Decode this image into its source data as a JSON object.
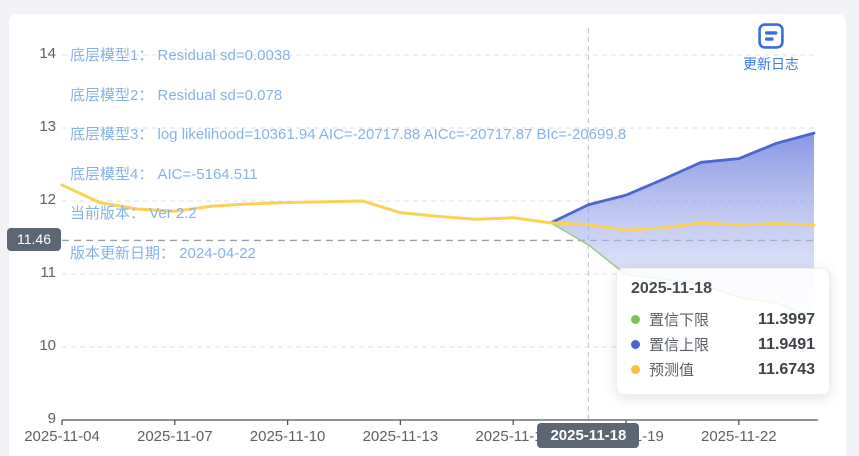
{
  "update_log": {
    "label": "更新日志"
  },
  "annotations": [
    "底层模型1： Residual sd=0.0038",
    "底层模型2： Residual sd=0.078",
    "底层模型3： log likelihood=10361.94 AIC=-20717.88 AICc=-20717.87 BIc=-20699.8",
    "底层模型4： AIC=-5164.511",
    "当前版本： Ver 2.2",
    "版本更新日期： 2024-04-22"
  ],
  "axis_pointer": {
    "date_label": "2025-11-18",
    "value_label": "11.46",
    "date": "2025-11-18",
    "value": 11.46
  },
  "tooltip": {
    "title": "2025-11-18",
    "rows": [
      {
        "label": "置信下限",
        "value": "11.3997",
        "color": "#7cc455"
      },
      {
        "label": "置信上限",
        "value": "11.9491",
        "color": "#4a63cc"
      },
      {
        "label": "预测值",
        "value": "11.6743",
        "color": "#f9c143"
      }
    ]
  },
  "colors": {
    "accent_blue": "#3a6de4",
    "annotation_blue": "#87b2e8",
    "grid": "#d9e2ef",
    "mark_line": "#99a0a8",
    "pointer_line": "#c6cad2",
    "axis": "#50555c",
    "badge_bg": "#5d6774",
    "band_top": "#7a8ce2",
    "band_bottom": "#d6dcf8"
  },
  "chart_data": {
    "type": "line",
    "title": "",
    "xlabel": "",
    "ylabel": "",
    "ylim": [
      9,
      14
    ],
    "y_ticks": [
      9,
      10,
      11,
      12,
      13,
      14
    ],
    "grid": true,
    "legend_position": "tooltip-only",
    "x": [
      "2025-11-04",
      "2025-11-05",
      "2025-11-06",
      "2025-11-07",
      "2025-11-08",
      "2025-11-09",
      "2025-11-10",
      "2025-11-11",
      "2025-11-12",
      "2025-11-13",
      "2025-11-14",
      "2025-11-15",
      "2025-11-16",
      "2025-11-17",
      "2025-11-18",
      "2025-11-19",
      "2025-11-20",
      "2025-11-21",
      "2025-11-22",
      "2025-11-23",
      "2025-11-24"
    ],
    "x_tick_indices": [
      0,
      3,
      6,
      9,
      12,
      15,
      18
    ],
    "x_tick_labels": [
      "2025-11-04",
      "2025-11-07",
      "2025-11-10",
      "2025-11-13",
      "2025-11-16",
      "2025-11-19",
      "2025-11-22"
    ],
    "pointer_index": 14,
    "markline_value": 11.46,
    "band": {
      "upper": "置信上限",
      "lower": "置信下限"
    },
    "series": [
      {
        "name": "预测值",
        "role": "forecast",
        "color": "#fbd158",
        "line_width": 3,
        "x_start_index": 0,
        "values": [
          12.22,
          11.98,
          11.89,
          11.86,
          11.93,
          11.96,
          11.98,
          11.99,
          12.0,
          11.84,
          11.79,
          11.75,
          11.77,
          11.7,
          11.6743,
          11.6,
          11.63,
          11.7,
          11.67,
          11.69,
          11.67
        ]
      },
      {
        "name": "置信上限",
        "role": "upper",
        "color": "#4c66cc",
        "line_width": 2.8,
        "x_start_index": 13,
        "values": [
          11.7,
          11.9491,
          12.08,
          12.3,
          12.53,
          12.58,
          12.79,
          12.93
        ]
      },
      {
        "name": "置信下限",
        "role": "lower",
        "color": "#9bcb7d",
        "line_width": 1.5,
        "x_start_index": 13,
        "values": [
          11.7,
          11.3997,
          10.99,
          10.93,
          10.86,
          10.68,
          10.6,
          10.41
        ]
      }
    ]
  }
}
